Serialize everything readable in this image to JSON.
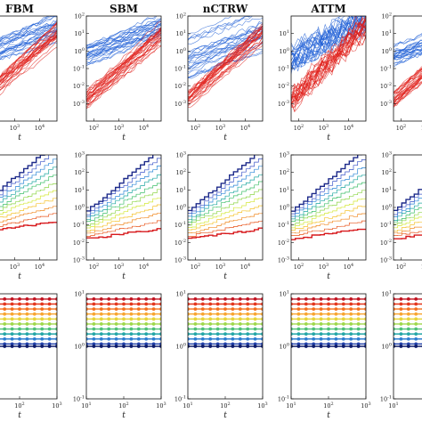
{
  "chart_data": {
    "type": "line",
    "layout": "grid 3 rows x 5 columns of log-log panels",
    "x_scale": "log",
    "y_scale": "log",
    "column_titles": [
      "FBM",
      "SBM",
      "nCTRW",
      "ATTM",
      ""
    ],
    "xlabel": "t",
    "row_x_ticks": [
      [
        "10^2",
        "10^3",
        "10^4"
      ],
      [
        "10^2",
        "10^3",
        "10^4"
      ],
      [
        "10^1",
        "10^2",
        "10^3"
      ]
    ],
    "row_y_ticks": [
      [
        "10^-4",
        "10^-3",
        "10^-2",
        "10^-1",
        "10^0",
        "10^1",
        "10^2"
      ],
      [
        "10^-3",
        "10^-2",
        "10^-1",
        "10^0",
        "10^1",
        "10^2",
        "10^3"
      ],
      [
        "10^-1",
        "10^0",
        "10^1"
      ]
    ],
    "row_xlim": [
      [
        50,
        50000
      ],
      [
        50,
        50000
      ],
      [
        10,
        1000
      ]
    ],
    "row_ylim": [
      [
        0.0001,
        100
      ],
      [
        0.001,
        1000
      ],
      [
        0.1,
        10
      ]
    ],
    "panel_y_ticks": [
      [
        "10^-4",
        "10^-3",
        "10^-2",
        "10^-1",
        "10^0",
        "10^1",
        "10^2"
      ],
      [
        "10^-3",
        "10^-2",
        "10^-1",
        "10^0",
        "10^1",
        "10^2"
      ],
      [
        "10^-3",
        "10^-2",
        "10^-1",
        "10^0",
        "10^1",
        "10^2"
      ],
      [
        "10^-3",
        "10^-2",
        "10^-1",
        "10^0",
        "10^1"
      ],
      [
        "10^-3",
        "10^-2",
        "10^-1",
        "10^0",
        "10^1",
        "10^2"
      ]
    ],
    "row1_series": [
      {
        "color": "#1f5fd6",
        "slope": 0.55,
        "y_at_100": 0.8,
        "spread": 1.2
      },
      {
        "color": "#e0201b",
        "slope": 1.25,
        "y_at_100": 0.004,
        "spread": 1.0
      }
    ],
    "row2_series_colors": [
      "#d7191c",
      "#e8551c",
      "#f08a24",
      "#f5c431",
      "#d4e83a",
      "#8fd64a",
      "#3fbf6a",
      "#1fa7a0",
      "#2b86d6",
      "#3b55c8",
      "#1d2a8a"
    ],
    "row3_levels_color_ramp": [
      "#c1121f",
      "#e4371d",
      "#f3701f",
      "#f8a530",
      "#e7d33a",
      "#9fd84c",
      "#4fc079",
      "#23a6a7",
      "#2f7fd2",
      "#1f3fa8",
      "#0d1b6b"
    ]
  }
}
